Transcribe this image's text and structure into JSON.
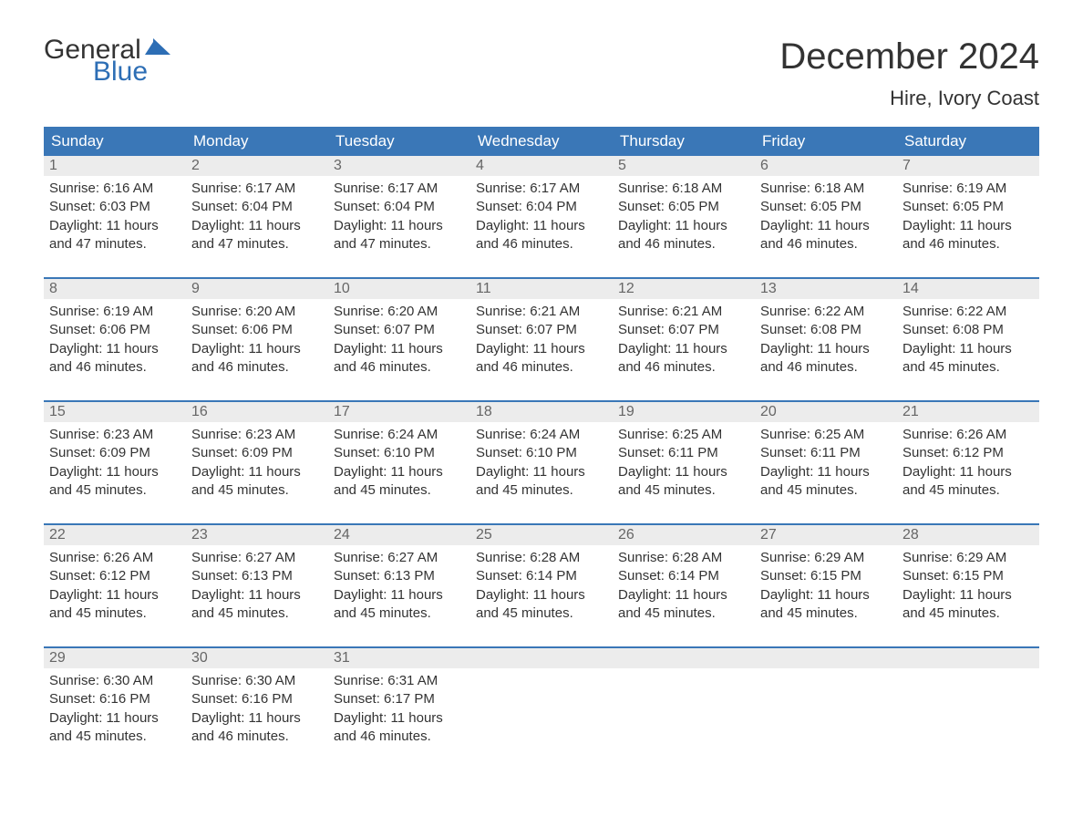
{
  "logo": {
    "line1": "General",
    "line2": "Blue",
    "flag_color": "#2d6eb5",
    "text_dark": "#333333"
  },
  "title": "December 2024",
  "location": "Hire, Ivory Coast",
  "colors": {
    "header_bg": "#3a77b7",
    "header_text": "#ffffff",
    "daynum_bg": "#ececec",
    "daynum_text": "#666666",
    "body_text": "#333333",
    "week_border": "#3a77b7",
    "page_bg": "#ffffff"
  },
  "weekdays": [
    "Sunday",
    "Monday",
    "Tuesday",
    "Wednesday",
    "Thursday",
    "Friday",
    "Saturday"
  ],
  "weeks": [
    [
      {
        "n": "1",
        "sunrise": "Sunrise: 6:16 AM",
        "sunset": "Sunset: 6:03 PM",
        "dl1": "Daylight: 11 hours",
        "dl2": "and 47 minutes."
      },
      {
        "n": "2",
        "sunrise": "Sunrise: 6:17 AM",
        "sunset": "Sunset: 6:04 PM",
        "dl1": "Daylight: 11 hours",
        "dl2": "and 47 minutes."
      },
      {
        "n": "3",
        "sunrise": "Sunrise: 6:17 AM",
        "sunset": "Sunset: 6:04 PM",
        "dl1": "Daylight: 11 hours",
        "dl2": "and 47 minutes."
      },
      {
        "n": "4",
        "sunrise": "Sunrise: 6:17 AM",
        "sunset": "Sunset: 6:04 PM",
        "dl1": "Daylight: 11 hours",
        "dl2": "and 46 minutes."
      },
      {
        "n": "5",
        "sunrise": "Sunrise: 6:18 AM",
        "sunset": "Sunset: 6:05 PM",
        "dl1": "Daylight: 11 hours",
        "dl2": "and 46 minutes."
      },
      {
        "n": "6",
        "sunrise": "Sunrise: 6:18 AM",
        "sunset": "Sunset: 6:05 PM",
        "dl1": "Daylight: 11 hours",
        "dl2": "and 46 minutes."
      },
      {
        "n": "7",
        "sunrise": "Sunrise: 6:19 AM",
        "sunset": "Sunset: 6:05 PM",
        "dl1": "Daylight: 11 hours",
        "dl2": "and 46 minutes."
      }
    ],
    [
      {
        "n": "8",
        "sunrise": "Sunrise: 6:19 AM",
        "sunset": "Sunset: 6:06 PM",
        "dl1": "Daylight: 11 hours",
        "dl2": "and 46 minutes."
      },
      {
        "n": "9",
        "sunrise": "Sunrise: 6:20 AM",
        "sunset": "Sunset: 6:06 PM",
        "dl1": "Daylight: 11 hours",
        "dl2": "and 46 minutes."
      },
      {
        "n": "10",
        "sunrise": "Sunrise: 6:20 AM",
        "sunset": "Sunset: 6:07 PM",
        "dl1": "Daylight: 11 hours",
        "dl2": "and 46 minutes."
      },
      {
        "n": "11",
        "sunrise": "Sunrise: 6:21 AM",
        "sunset": "Sunset: 6:07 PM",
        "dl1": "Daylight: 11 hours",
        "dl2": "and 46 minutes."
      },
      {
        "n": "12",
        "sunrise": "Sunrise: 6:21 AM",
        "sunset": "Sunset: 6:07 PM",
        "dl1": "Daylight: 11 hours",
        "dl2": "and 46 minutes."
      },
      {
        "n": "13",
        "sunrise": "Sunrise: 6:22 AM",
        "sunset": "Sunset: 6:08 PM",
        "dl1": "Daylight: 11 hours",
        "dl2": "and 46 minutes."
      },
      {
        "n": "14",
        "sunrise": "Sunrise: 6:22 AM",
        "sunset": "Sunset: 6:08 PM",
        "dl1": "Daylight: 11 hours",
        "dl2": "and 45 minutes."
      }
    ],
    [
      {
        "n": "15",
        "sunrise": "Sunrise: 6:23 AM",
        "sunset": "Sunset: 6:09 PM",
        "dl1": "Daylight: 11 hours",
        "dl2": "and 45 minutes."
      },
      {
        "n": "16",
        "sunrise": "Sunrise: 6:23 AM",
        "sunset": "Sunset: 6:09 PM",
        "dl1": "Daylight: 11 hours",
        "dl2": "and 45 minutes."
      },
      {
        "n": "17",
        "sunrise": "Sunrise: 6:24 AM",
        "sunset": "Sunset: 6:10 PM",
        "dl1": "Daylight: 11 hours",
        "dl2": "and 45 minutes."
      },
      {
        "n": "18",
        "sunrise": "Sunrise: 6:24 AM",
        "sunset": "Sunset: 6:10 PM",
        "dl1": "Daylight: 11 hours",
        "dl2": "and 45 minutes."
      },
      {
        "n": "19",
        "sunrise": "Sunrise: 6:25 AM",
        "sunset": "Sunset: 6:11 PM",
        "dl1": "Daylight: 11 hours",
        "dl2": "and 45 minutes."
      },
      {
        "n": "20",
        "sunrise": "Sunrise: 6:25 AM",
        "sunset": "Sunset: 6:11 PM",
        "dl1": "Daylight: 11 hours",
        "dl2": "and 45 minutes."
      },
      {
        "n": "21",
        "sunrise": "Sunrise: 6:26 AM",
        "sunset": "Sunset: 6:12 PM",
        "dl1": "Daylight: 11 hours",
        "dl2": "and 45 minutes."
      }
    ],
    [
      {
        "n": "22",
        "sunrise": "Sunrise: 6:26 AM",
        "sunset": "Sunset: 6:12 PM",
        "dl1": "Daylight: 11 hours",
        "dl2": "and 45 minutes."
      },
      {
        "n": "23",
        "sunrise": "Sunrise: 6:27 AM",
        "sunset": "Sunset: 6:13 PM",
        "dl1": "Daylight: 11 hours",
        "dl2": "and 45 minutes."
      },
      {
        "n": "24",
        "sunrise": "Sunrise: 6:27 AM",
        "sunset": "Sunset: 6:13 PM",
        "dl1": "Daylight: 11 hours",
        "dl2": "and 45 minutes."
      },
      {
        "n": "25",
        "sunrise": "Sunrise: 6:28 AM",
        "sunset": "Sunset: 6:14 PM",
        "dl1": "Daylight: 11 hours",
        "dl2": "and 45 minutes."
      },
      {
        "n": "26",
        "sunrise": "Sunrise: 6:28 AM",
        "sunset": "Sunset: 6:14 PM",
        "dl1": "Daylight: 11 hours",
        "dl2": "and 45 minutes."
      },
      {
        "n": "27",
        "sunrise": "Sunrise: 6:29 AM",
        "sunset": "Sunset: 6:15 PM",
        "dl1": "Daylight: 11 hours",
        "dl2": "and 45 minutes."
      },
      {
        "n": "28",
        "sunrise": "Sunrise: 6:29 AM",
        "sunset": "Sunset: 6:15 PM",
        "dl1": "Daylight: 11 hours",
        "dl2": "and 45 minutes."
      }
    ],
    [
      {
        "n": "29",
        "sunrise": "Sunrise: 6:30 AM",
        "sunset": "Sunset: 6:16 PM",
        "dl1": "Daylight: 11 hours",
        "dl2": "and 45 minutes."
      },
      {
        "n": "30",
        "sunrise": "Sunrise: 6:30 AM",
        "sunset": "Sunset: 6:16 PM",
        "dl1": "Daylight: 11 hours",
        "dl2": "and 46 minutes."
      },
      {
        "n": "31",
        "sunrise": "Sunrise: 6:31 AM",
        "sunset": "Sunset: 6:17 PM",
        "dl1": "Daylight: 11 hours",
        "dl2": "and 46 minutes."
      },
      null,
      null,
      null,
      null
    ]
  ]
}
